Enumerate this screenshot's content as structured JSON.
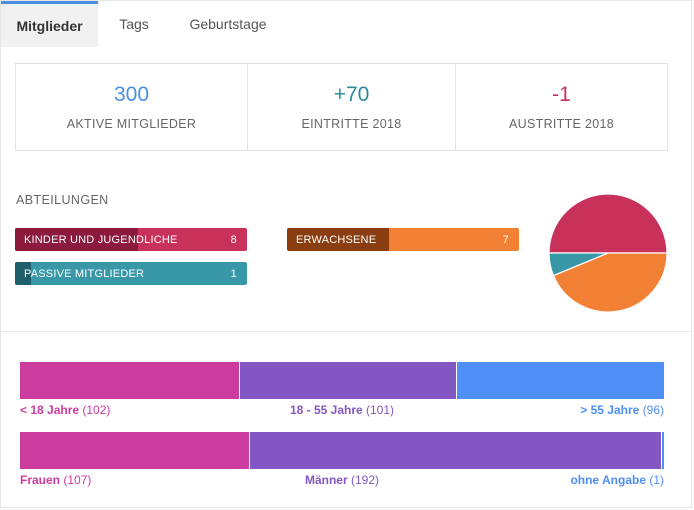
{
  "tabs": [
    {
      "label": "Mitglieder"
    },
    {
      "label": "Tags"
    },
    {
      "label": "Geburtstage"
    }
  ],
  "stats": [
    {
      "value": "300",
      "label": "AKTIVE MITGLIEDER",
      "color": "#4a90e2"
    },
    {
      "value": "+70",
      "label": "EINTRITTE 2018",
      "color": "#2e8b9a"
    },
    {
      "value": "-1",
      "label": "AUSTRITTE 2018",
      "color": "#c8315a"
    }
  ],
  "departments": {
    "title": "ABTEILUNGEN",
    "items": [
      {
        "name": "KINDER UND JUGENDLICHE",
        "count": "8",
        "fraction": 0.53,
        "fill_color": "#8b1a3d",
        "color": "#c8315a"
      },
      {
        "name": "ERWACHSENE",
        "count": "7",
        "fraction": 0.44,
        "fill_color": "#8a3d10",
        "color": "#f28035"
      },
      {
        "name": "PASSIVE MITGLIEDER",
        "count": "1",
        "fraction": 0.07,
        "fill_color": "#1f5f6b",
        "color": "#3898a8"
      }
    ]
  },
  "pie": {
    "values": [
      8,
      7,
      1
    ],
    "colors": [
      "#c8315a",
      "#f28035",
      "#3898a8"
    ]
  },
  "age": {
    "segments": [
      {
        "label": "< 18 Jahre",
        "count": "(102)",
        "value": 102,
        "color": "#cc3c9e"
      },
      {
        "label": "18 - 55 Jahre",
        "count": "(101)",
        "value": 101,
        "color": "#8257c4"
      },
      {
        "label": "> 55 Jahre",
        "count": "(96)",
        "value": 96,
        "color": "#4f8ef5"
      }
    ]
  },
  "gender": {
    "segments": [
      {
        "label": "Frauen",
        "count": "(107)",
        "value": 107,
        "color": "#cc3c9e"
      },
      {
        "label": "Männer",
        "count": "(192)",
        "value": 192,
        "color": "#8257c4"
      },
      {
        "label": "ohne Angabe",
        "count": "(1)",
        "value": 1,
        "color": "#4f8ef5"
      }
    ]
  }
}
